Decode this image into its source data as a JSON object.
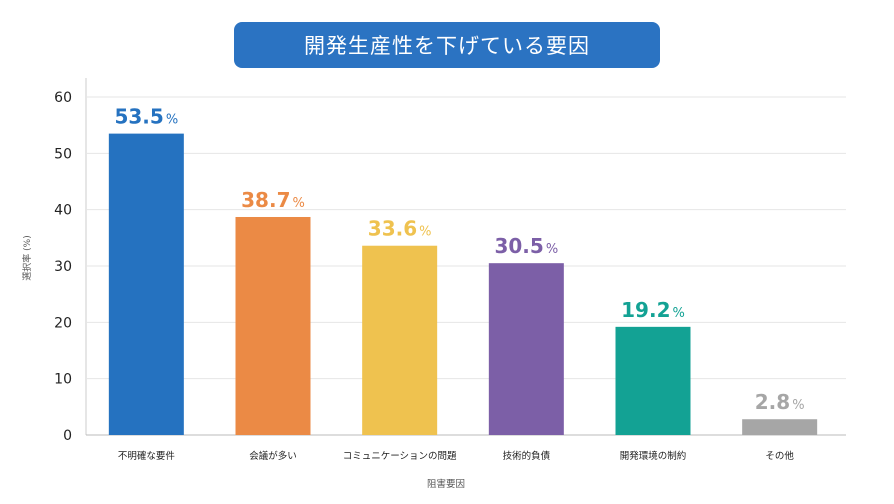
{
  "chart_data": {
    "type": "bar",
    "title": "開発生産性を下げている要因",
    "xlabel": "阻害要因",
    "ylabel": "選択率 (%)",
    "ylim": [
      0,
      60
    ],
    "yticks": [
      0,
      10,
      20,
      30,
      40,
      50,
      60
    ],
    "grid": true,
    "categories": [
      "不明確な要件",
      "会議が多い",
      "コミュニケーションの問題",
      "技術的負債",
      "開発環境の制約",
      "その他"
    ],
    "values": [
      53.5,
      38.7,
      33.6,
      30.5,
      19.2,
      2.8
    ],
    "value_labels": [
      "53.5",
      "38.7",
      "33.6",
      "30.5",
      "19.2",
      "2.8"
    ],
    "percent_sign": "%",
    "colors": [
      "#2572c0",
      "#eb8a45",
      "#efc24f",
      "#7c5fa7",
      "#13a294",
      "#a6a6a6"
    ]
  }
}
